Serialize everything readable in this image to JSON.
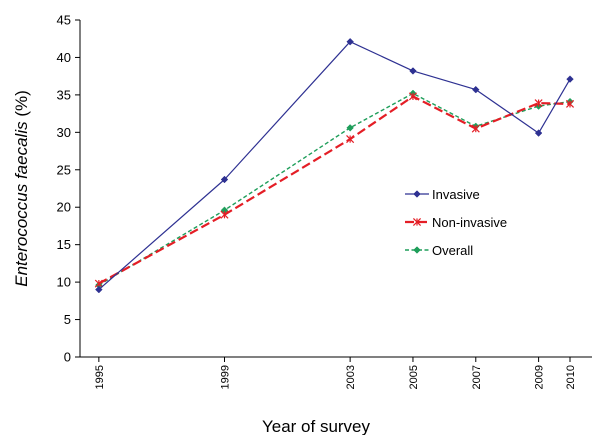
{
  "chart_data": {
    "type": "line",
    "title": "",
    "xlabel": "Year of survey",
    "ylabel_italic": "Enterococcus faecalis",
    "ylabel_suffix": " (%)",
    "x": [
      1995,
      1999,
      2003,
      2005,
      2007,
      2009,
      2010
    ],
    "x_tick_labels": [
      "1995",
      "1999",
      "2003",
      "2005",
      "2007",
      "2009",
      "2010"
    ],
    "ylim": [
      0,
      45
    ],
    "y_ticks": [
      0,
      5,
      10,
      15,
      20,
      25,
      30,
      35,
      40,
      45
    ],
    "legend_position": "right-center",
    "series": [
      {
        "name": "Invasive",
        "color": "#2e3192",
        "style": "solid",
        "marker": "diamond",
        "values": [
          9.0,
          23.7,
          42.1,
          38.2,
          35.7,
          29.9,
          37.1
        ]
      },
      {
        "name": "Non-invasive",
        "color": "#e41e26",
        "style": "dashed",
        "marker": "asterisk",
        "values": [
          9.8,
          19.0,
          29.1,
          34.8,
          30.5,
          33.9,
          33.8
        ]
      },
      {
        "name": "Overall",
        "color": "#1e9e5a",
        "style": "dotted",
        "marker": "diamond",
        "values": [
          9.6,
          19.6,
          30.6,
          35.2,
          30.8,
          33.5,
          34.1
        ]
      }
    ]
  }
}
